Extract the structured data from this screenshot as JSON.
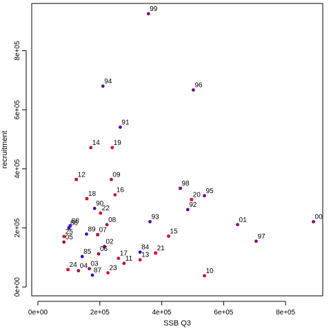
{
  "chart_data": {
    "type": "scatter",
    "xlabel": "SSB Q3",
    "ylabel": "recruitment",
    "xlim": [
      -20000,
      920000
    ],
    "ylim": [
      -30000,
      960000
    ],
    "x_ticks": [
      0,
      200000,
      400000,
      600000,
      800000
    ],
    "x_tick_labels": [
      "0e+00",
      "2e+05",
      "4e+05",
      "6e+05",
      "8e+05"
    ],
    "y_ticks": [
      0,
      200000,
      400000,
      600000,
      800000
    ],
    "y_tick_labels": [
      "0e+00",
      "2e+05",
      "4e+05",
      "6e+05",
      "8e+05"
    ],
    "colors": {
      "early": "#1a00ff",
      "mid": "#8000b0",
      "late": "#e0002a"
    },
    "points": [
      {
        "label": "84",
        "x": 330000,
        "y": 118000,
        "color": "#1a00ff",
        "shape": "circle"
      },
      {
        "label": "85",
        "x": 143000,
        "y": 103000,
        "color": "#2200f0",
        "shape": "circle"
      },
      {
        "label": "86",
        "x": 100000,
        "y": 200000,
        "color": "#2c00e2",
        "shape": "square"
      },
      {
        "label": "87",
        "x": 176000,
        "y": 40000,
        "color": "#3600d8",
        "shape": "circle"
      },
      {
        "label": "88",
        "x": 104000,
        "y": 207000,
        "color": "#3e00cc",
        "shape": "square"
      },
      {
        "label": "89",
        "x": 157000,
        "y": 179000,
        "color": "#4400c4",
        "shape": "circle"
      },
      {
        "label": "90",
        "x": 183000,
        "y": 266000,
        "color": "#4c00b8",
        "shape": "circle"
      },
      {
        "label": "91",
        "x": 266000,
        "y": 541000,
        "color": "#5000b0",
        "shape": "circle"
      },
      {
        "label": "92",
        "x": 484000,
        "y": 262000,
        "color": "#5600a8",
        "shape": "circle"
      },
      {
        "label": "93",
        "x": 362000,
        "y": 221000,
        "color": "#5c00a0",
        "shape": "circle"
      },
      {
        "label": "94",
        "x": 210000,
        "y": 680000,
        "color": "#620098",
        "shape": "circle"
      },
      {
        "label": "95",
        "x": 538000,
        "y": 309000,
        "color": "#680090",
        "shape": "circle"
      },
      {
        "label": "96",
        "x": 502000,
        "y": 667000,
        "color": "#6e0088",
        "shape": "circle"
      },
      {
        "label": "97",
        "x": 705000,
        "y": 155000,
        "color": "#740080",
        "shape": "circle"
      },
      {
        "label": "98",
        "x": 460000,
        "y": 334000,
        "color": "#7a0078",
        "shape": "square"
      },
      {
        "label": "99",
        "x": 357000,
        "y": 925000,
        "color": "#800070",
        "shape": "circle"
      },
      {
        "label": "00",
        "x": 890000,
        "y": 221000,
        "color": "#860068",
        "shape": "circle"
      },
      {
        "label": "01",
        "x": 645000,
        "y": 211000,
        "color": "#8c0060",
        "shape": "circle"
      },
      {
        "label": "02",
        "x": 215000,
        "y": 137000,
        "color": "#92005a",
        "shape": "circle"
      },
      {
        "label": "03",
        "x": 166000,
        "y": 62000,
        "color": "#980054",
        "shape": "circle"
      },
      {
        "label": "04",
        "x": 131000,
        "y": 55000,
        "color": "#9e004e",
        "shape": "circle"
      },
      {
        "label": "05",
        "x": 84000,
        "y": 152000,
        "color": "#a40048",
        "shape": "circle"
      },
      {
        "label": "06",
        "x": 196000,
        "y": 112000,
        "color": "#aa0044",
        "shape": "circle"
      },
      {
        "label": "07",
        "x": 193000,
        "y": 177000,
        "color": "#b0003e",
        "shape": "square"
      },
      {
        "label": "08",
        "x": 223000,
        "y": 211000,
        "color": "#b6003a",
        "shape": "circle"
      },
      {
        "label": "09",
        "x": 237000,
        "y": 364000,
        "color": "#bc0036",
        "shape": "circle"
      },
      {
        "label": "10",
        "x": 538000,
        "y": 38000,
        "color": "#c20032",
        "shape": "circle"
      },
      {
        "label": "11",
        "x": 278000,
        "y": 80000,
        "color": "#c6002e",
        "shape": "circle"
      },
      {
        "label": "12",
        "x": 124000,
        "y": 364000,
        "color": "#ca002c",
        "shape": "square"
      },
      {
        "label": "13",
        "x": 330000,
        "y": 92000,
        "color": "#ce002a",
        "shape": "circle"
      },
      {
        "label": "14",
        "x": 171000,
        "y": 472000,
        "color": "#d20028",
        "shape": "circle"
      },
      {
        "label": "15",
        "x": 422000,
        "y": 172000,
        "color": "#d60026",
        "shape": "circle"
      },
      {
        "label": "16",
        "x": 249000,
        "y": 312000,
        "color": "#d80026",
        "shape": "circle"
      },
      {
        "label": "17",
        "x": 260000,
        "y": 97000,
        "color": "#da0024",
        "shape": "circle"
      },
      {
        "label": "18",
        "x": 158000,
        "y": 299000,
        "color": "#dc0024",
        "shape": "square"
      },
      {
        "label": "19",
        "x": 240000,
        "y": 472000,
        "color": "#de0022",
        "shape": "circle"
      },
      {
        "label": "20",
        "x": 496000,
        "y": 296000,
        "color": "#e00022",
        "shape": "square"
      },
      {
        "label": "21",
        "x": 380000,
        "y": 115000,
        "color": "#e20020",
        "shape": "square"
      },
      {
        "label": "22",
        "x": 202000,
        "y": 250000,
        "color": "#e40020",
        "shape": "circle"
      },
      {
        "label": "23",
        "x": 226000,
        "y": 48000,
        "color": "#e6001e",
        "shape": "circle"
      },
      {
        "label": "24",
        "x": 97000,
        "y": 59000,
        "color": "#e8001c",
        "shape": "square"
      },
      {
        "label": "25",
        "x": 84000,
        "y": 171000,
        "color": "#ea001a",
        "shape": "circle"
      }
    ]
  }
}
